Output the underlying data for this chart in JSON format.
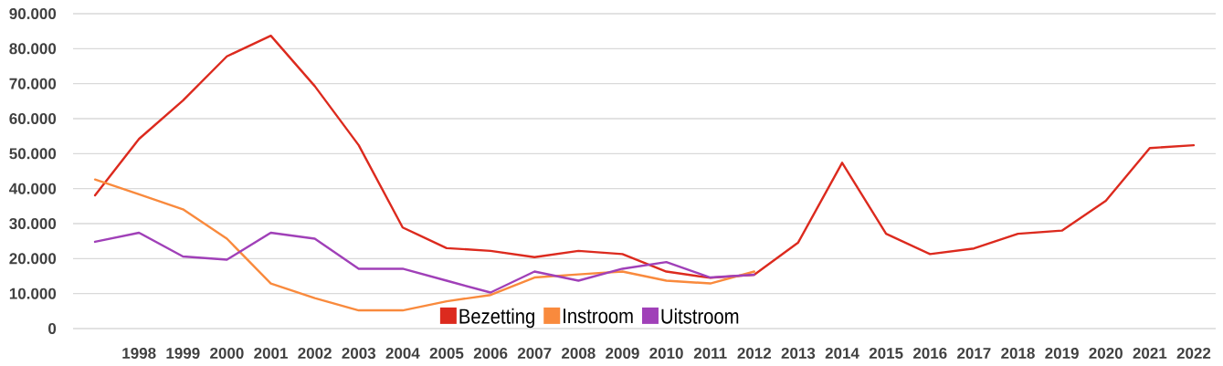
{
  "chart_data": {
    "type": "line",
    "categories": [
      null,
      "1998",
      "1999",
      "2000",
      "2001",
      "2002",
      "2003",
      "2004",
      "2005",
      "2006",
      "2007",
      "2008",
      "2009",
      "2010",
      "2011",
      "2012",
      "2013",
      "2014",
      "2015",
      "2016",
      "2017",
      "2018",
      "2019",
      "2020",
      "2021",
      "2022"
    ],
    "series": [
      {
        "name": "Bezetting",
        "color": "#dc2a1e",
        "values": [
          38100,
          54200,
          65200,
          77800,
          83700,
          69300,
          52400,
          28900,
          23000,
          22200,
          20400,
          22200,
          21300,
          16300,
          14500,
          15400,
          24600,
          47400,
          27100,
          21300,
          22900,
          27100,
          28000,
          36500,
          51600,
          52400
        ]
      },
      {
        "name": "Instroom",
        "color": "#f98a3d",
        "values": [
          42600,
          38400,
          34100,
          25700,
          12900,
          8700,
          5200,
          5200,
          7800,
          9600,
          14600,
          15500,
          16300,
          13700,
          12900,
          16300,
          null,
          null,
          null,
          null,
          null,
          null,
          null,
          null,
          null,
          null
        ]
      },
      {
        "name": "Uitstroom",
        "color": "#a040b8",
        "values": [
          24800,
          27400,
          20600,
          19700,
          27400,
          25700,
          17100,
          17100,
          13700,
          10300,
          16300,
          13700,
          17100,
          19000,
          14600,
          15400,
          null,
          null,
          null,
          null,
          null,
          null,
          null,
          null,
          null,
          null
        ]
      }
    ],
    "ylim": [
      0,
      90000
    ],
    "yticks": [
      0,
      {
        "value": 10000,
        "label": "10.000"
      },
      {
        "value": 20000,
        "label": "20.000"
      },
      {
        "value": 30000,
        "label": "30.000"
      },
      {
        "value": 40000,
        "label": "40.000"
      },
      {
        "value": 50000,
        "label": "50.000"
      },
      {
        "value": 60000,
        "label": "60.000"
      },
      {
        "value": 70000,
        "label": "70.000"
      },
      {
        "value": 80000,
        "label": "80.000"
      },
      {
        "value": 90000,
        "label": "90.000"
      }
    ],
    "grid": "y",
    "legend": "bottom"
  }
}
